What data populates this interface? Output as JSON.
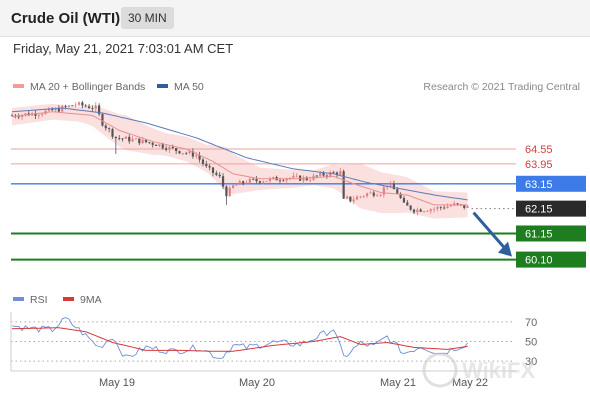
{
  "header": {
    "title": "Crude Oil (WTI)",
    "timeframe": "30 MIN"
  },
  "timestamp": "Friday, May 21, 2021 7:03:01 AM CET",
  "credit": "Research © 2021 Trading Central",
  "colors": {
    "bb_fill": "#f9d5d5",
    "ma20": "#e58f8f",
    "ma50": "#5b7bb8",
    "up_candle": "#e08080",
    "down_candle": "#555555",
    "resistance": "#f2a0a0",
    "pivot": "#3d7be8",
    "support": "#1e7d1e",
    "last": "#2a2a2a",
    "rsi": "#6f8fd8",
    "rsi_ma": "#d43a3a",
    "arrow": "#2f5e9e"
  },
  "chart_data": [
    {
      "type": "candlestick",
      "legend": [
        {
          "name": "MA 20 + Bollinger Bands"
        },
        {
          "name": "MA 50"
        }
      ],
      "ylim": [
        59.6,
        66.2
      ],
      "x_ticks": [
        "May 19",
        "May 20",
        "May 21",
        "May 22"
      ],
      "levels": [
        {
          "label": "64.55",
          "value": 64.55,
          "kind": "resistance"
        },
        {
          "label": "63.95",
          "value": 63.95,
          "kind": "resistance"
        },
        {
          "label": "63.15",
          "value": 63.15,
          "kind": "pivot"
        },
        {
          "label": "62.15",
          "value": 62.15,
          "kind": "last"
        },
        {
          "label": "61.15",
          "value": 61.15,
          "kind": "support"
        },
        {
          "label": "60.10",
          "value": 60.1,
          "kind": "support"
        }
      ],
      "close_anchors": [
        [
          0,
          65.9
        ],
        [
          8,
          66.0
        ],
        [
          14,
          66.15
        ],
        [
          19,
          66.35
        ],
        [
          25,
          66.2
        ],
        [
          27,
          65.6
        ],
        [
          31,
          65.0
        ],
        [
          37,
          64.9
        ],
        [
          43,
          64.75
        ],
        [
          49,
          64.5
        ],
        [
          55,
          64.3
        ],
        [
          58,
          63.8
        ],
        [
          62,
          63.4
        ],
        [
          64,
          62.7
        ],
        [
          66,
          63.05
        ],
        [
          70,
          63.25
        ],
        [
          76,
          63.3
        ],
        [
          82,
          63.4
        ],
        [
          88,
          63.35
        ],
        [
          94,
          63.55
        ],
        [
          98,
          63.6
        ],
        [
          99,
          62.6
        ],
        [
          101,
          62.5
        ],
        [
          106,
          62.75
        ],
        [
          110,
          62.8
        ],
        [
          112,
          63.15
        ],
        [
          115,
          62.8
        ],
        [
          117,
          62.3
        ],
        [
          120,
          62.1
        ],
        [
          126,
          62.15
        ],
        [
          132,
          62.3
        ],
        [
          136,
          62.2
        ]
      ],
      "ma20_anchors": [
        [
          0,
          65.85
        ],
        [
          12,
          66.05
        ],
        [
          24,
          65.9
        ],
        [
          32,
          65.3
        ],
        [
          42,
          64.85
        ],
        [
          52,
          64.55
        ],
        [
          60,
          64.05
        ],
        [
          66,
          63.55
        ],
        [
          74,
          63.35
        ],
        [
          84,
          63.35
        ],
        [
          96,
          63.45
        ],
        [
          102,
          63.15
        ],
        [
          110,
          62.8
        ],
        [
          118,
          62.7
        ],
        [
          126,
          62.3
        ],
        [
          136,
          62.3
        ]
      ],
      "ma50_anchors": [
        [
          0,
          66.05
        ],
        [
          15,
          66.2
        ],
        [
          27,
          66.0
        ],
        [
          40,
          65.6
        ],
        [
          55,
          65.0
        ],
        [
          70,
          64.2
        ],
        [
          84,
          63.75
        ],
        [
          96,
          63.55
        ],
        [
          106,
          63.2
        ],
        [
          116,
          62.95
        ],
        [
          126,
          62.7
        ],
        [
          136,
          62.5
        ]
      ],
      "bb_half_width_anchors": [
        [
          0,
          0.35
        ],
        [
          20,
          0.3
        ],
        [
          28,
          0.55
        ],
        [
          34,
          0.7
        ],
        [
          46,
          0.45
        ],
        [
          58,
          0.55
        ],
        [
          64,
          0.9
        ],
        [
          74,
          0.45
        ],
        [
          90,
          0.3
        ],
        [
          98,
          0.55
        ],
        [
          104,
          0.9
        ],
        [
          116,
          0.75
        ],
        [
          126,
          0.55
        ],
        [
          136,
          0.5
        ]
      ]
    },
    {
      "type": "line",
      "legend": [
        {
          "name": "RSI"
        },
        {
          "name": "9MA"
        }
      ],
      "ylim": [
        20,
        80
      ],
      "y_ticks": [
        "70",
        "50",
        "30"
      ],
      "rsi_anchors": [
        [
          0,
          66
        ],
        [
          6,
          63
        ],
        [
          12,
          62
        ],
        [
          16,
          73
        ],
        [
          20,
          62
        ],
        [
          26,
          44
        ],
        [
          30,
          55
        ],
        [
          34,
          33
        ],
        [
          40,
          44
        ],
        [
          48,
          40
        ],
        [
          56,
          44
        ],
        [
          62,
          33
        ],
        [
          66,
          46
        ],
        [
          70,
          44
        ],
        [
          78,
          49
        ],
        [
          86,
          47
        ],
        [
          92,
          56
        ],
        [
          96,
          63
        ],
        [
          99,
          34
        ],
        [
          104,
          48
        ],
        [
          108,
          45
        ],
        [
          112,
          55
        ],
        [
          117,
          38
        ],
        [
          122,
          45
        ],
        [
          128,
          38
        ],
        [
          136,
          48
        ]
      ],
      "ma_anchors": [
        [
          0,
          63
        ],
        [
          14,
          64
        ],
        [
          22,
          60
        ],
        [
          30,
          49
        ],
        [
          40,
          41
        ],
        [
          50,
          41
        ],
        [
          60,
          40
        ],
        [
          66,
          40
        ],
        [
          78,
          46
        ],
        [
          90,
          50
        ],
        [
          98,
          55
        ],
        [
          104,
          47
        ],
        [
          112,
          49
        ],
        [
          120,
          44
        ],
        [
          130,
          42
        ],
        [
          136,
          45
        ]
      ]
    }
  ],
  "overlay_text": {
    "watermark": "WikiFX"
  }
}
